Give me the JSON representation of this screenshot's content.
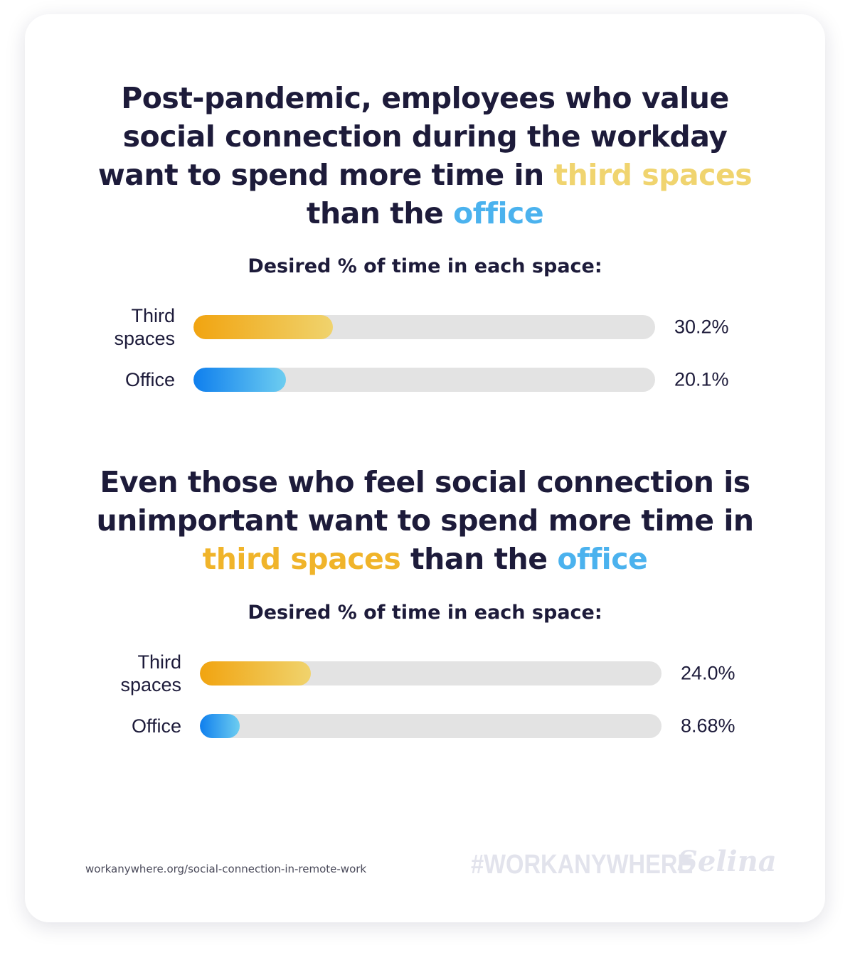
{
  "sections": [
    {
      "headline_parts": [
        {
          "text": "Post-pandemic, employees who value",
          "style": "plain"
        },
        {
          "text": "social connection during the workday",
          "style": "plain"
        },
        {
          "text": "want to spend more time in ",
          "style": "plain"
        },
        {
          "text": "third spaces",
          "style": "third-light"
        },
        {
          "text": "than the ",
          "style": "plain"
        },
        {
          "text": "office",
          "style": "office"
        }
      ],
      "subtitle": "Desired % of time in each space:"
    },
    {
      "headline_parts": [
        {
          "text": "Even those who feel social connection is",
          "style": "plain"
        },
        {
          "text": "unimportant want to spend more time in",
          "style": "plain"
        },
        {
          "text": "third spaces",
          "style": "third-dark"
        },
        {
          "text": " than the ",
          "style": "plain"
        },
        {
          "text": "office",
          "style": "office"
        }
      ],
      "subtitle": "Desired % of time in each space:"
    }
  ],
  "chart_data": [
    {
      "type": "bar",
      "orientation": "horizontal",
      "categories": [
        "Third spaces",
        "Office"
      ],
      "category_lines": [
        [
          "Third",
          "spaces"
        ],
        [
          "Office"
        ]
      ],
      "values": [
        30.2,
        20.1
      ],
      "value_labels": [
        "30.2%",
        "20.1%"
      ],
      "xlim": [
        0,
        100
      ],
      "title": "Desired % of time in each space:"
    },
    {
      "type": "bar",
      "orientation": "horizontal",
      "categories": [
        "Third spaces",
        "Office"
      ],
      "category_lines": [
        [
          "Third",
          "spaces"
        ],
        [
          "Office"
        ]
      ],
      "values": [
        24.0,
        8.68
      ],
      "value_labels": [
        "24.0%",
        "8.68%"
      ],
      "xlim": [
        0,
        100
      ],
      "title": "Desired % of time in each space:"
    }
  ],
  "colors": {
    "text": "#1d1b3a",
    "third_spaces_light": "#f0d46f",
    "third_spaces_dark": "#f0b42a",
    "office": "#4bb2ee",
    "third_spaces_bar": [
      "#f1a410",
      "#f0d36d"
    ],
    "office_bar": [
      "#0f7fee",
      "#6dcdf0"
    ],
    "track": "#e3e3e3"
  },
  "footer": {
    "source": "workanywhere.org/social-connection-in-remote-work",
    "hashtag": "#WORKANYWHERE",
    "brand": "Selina"
  }
}
